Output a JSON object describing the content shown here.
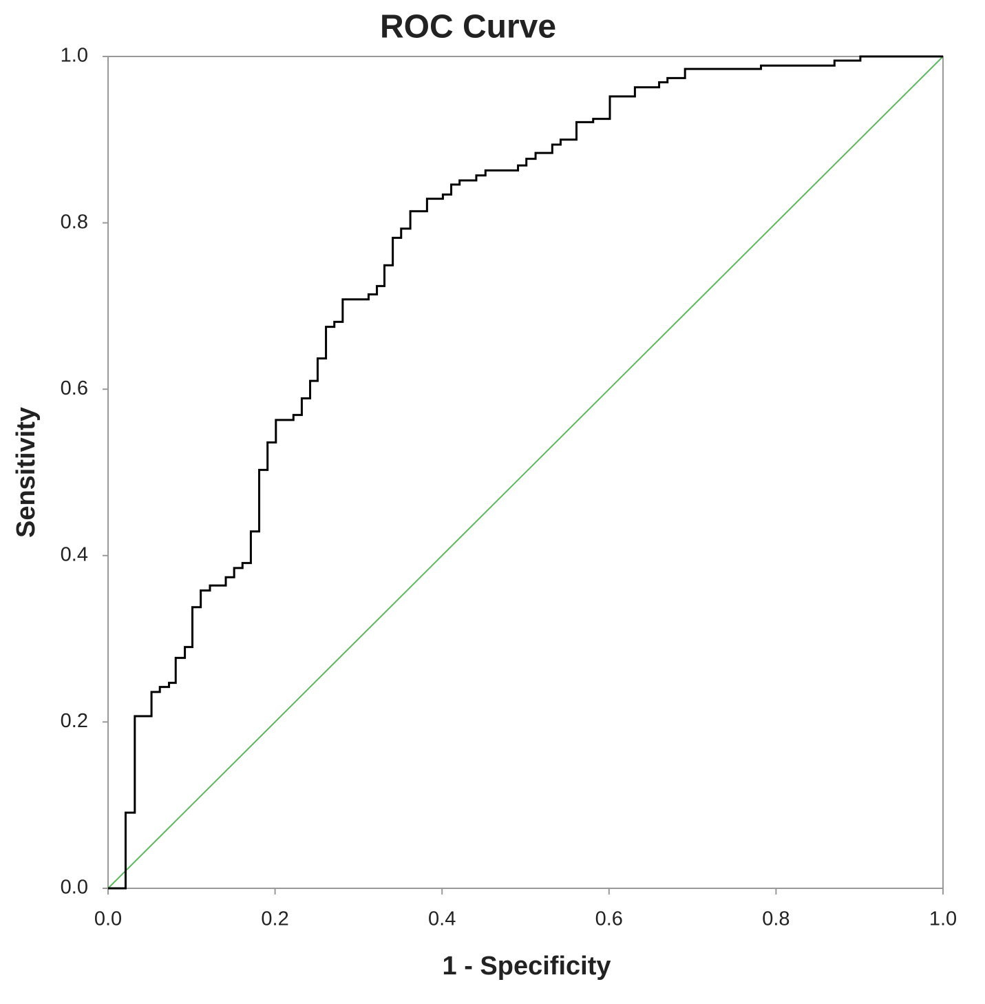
{
  "chart_data": {
    "type": "line",
    "title": "ROC Curve",
    "x_label": "1 - Specificity",
    "y_label": "Sensitivity",
    "xlim": [
      0,
      1
    ],
    "ylim": [
      0,
      1
    ],
    "xticks": [
      {
        "value": 0,
        "label": "0.0"
      },
      0.2,
      0.4,
      0.6,
      0.8,
      {
        "value": 1,
        "label": "1.0"
      }
    ],
    "yticks": [
      {
        "value": 0,
        "label": "0.0"
      },
      0.2,
      0.4,
      0.6,
      0.8,
      {
        "value": 1,
        "label": "1.0"
      }
    ],
    "grid": false,
    "series": [
      {
        "color": "#000000",
        "x": [
          0,
          0.021,
          0.021,
          0.032,
          0.032,
          0.052,
          0.052,
          0.062,
          0.062,
          0.073,
          0.073,
          0.081,
          0.081,
          0.092,
          0.092,
          0.101,
          0.101,
          0.111,
          0.111,
          0.122,
          0.122,
          0.141,
          0.141,
          0.151,
          0.151,
          0.161,
          0.161,
          0.171,
          0.171,
          0.181,
          0.181,
          0.191,
          0.191,
          0.201,
          0.201,
          0.222,
          0.222,
          0.232,
          0.232,
          0.242,
          0.242,
          0.251,
          0.251,
          0.261,
          0.261,
          0.271,
          0.271,
          0.281,
          0.281,
          0.312,
          0.312,
          0.322,
          0.322,
          0.331,
          0.331,
          0.341,
          0.341,
          0.351,
          0.351,
          0.362,
          0.362,
          0.382,
          0.382,
          0.401,
          0.401,
          0.411,
          0.411,
          0.421,
          0.421,
          0.441,
          0.441,
          0.452,
          0.452,
          0.491,
          0.491,
          0.501,
          0.501,
          0.512,
          0.512,
          0.532,
          0.532,
          0.542,
          0.542,
          0.561,
          0.561,
          0.581,
          0.581,
          0.601,
          0.601,
          0.631,
          0.631,
          0.66,
          0.66,
          0.67,
          0.67,
          0.691,
          0.691,
          0.782,
          0.782,
          0.87,
          0.87,
          0.901,
          0.901,
          1
        ],
        "y": [
          0,
          0,
          0.091,
          0.091,
          0.207,
          0.207,
          0.236,
          0.236,
          0.242,
          0.242,
          0.247,
          0.247,
          0.277,
          0.277,
          0.29,
          0.29,
          0.338,
          0.338,
          0.358,
          0.358,
          0.364,
          0.364,
          0.374,
          0.374,
          0.385,
          0.385,
          0.391,
          0.391,
          0.429,
          0.429,
          0.503,
          0.503,
          0.536,
          0.536,
          0.563,
          0.563,
          0.569,
          0.569,
          0.589,
          0.589,
          0.61,
          0.61,
          0.637,
          0.637,
          0.675,
          0.675,
          0.681,
          0.681,
          0.708,
          0.708,
          0.714,
          0.714,
          0.724,
          0.724,
          0.749,
          0.749,
          0.782,
          0.782,
          0.793,
          0.793,
          0.814,
          0.814,
          0.829,
          0.829,
          0.834,
          0.834,
          0.846,
          0.846,
          0.851,
          0.851,
          0.857,
          0.857,
          0.863,
          0.863,
          0.869,
          0.869,
          0.877,
          0.877,
          0.884,
          0.884,
          0.894,
          0.894,
          0.9,
          0.9,
          0.921,
          0.921,
          0.925,
          0.925,
          0.952,
          0.952,
          0.963,
          0.963,
          0.969,
          0.969,
          0.974,
          0.974,
          0.985,
          0.985,
          0.989,
          0.989,
          0.995,
          0.995,
          1.0,
          1
        ]
      },
      {
        "color": "#5cb85c",
        "x": [
          0,
          1
        ],
        "y": [
          0,
          1
        ]
      }
    ]
  }
}
